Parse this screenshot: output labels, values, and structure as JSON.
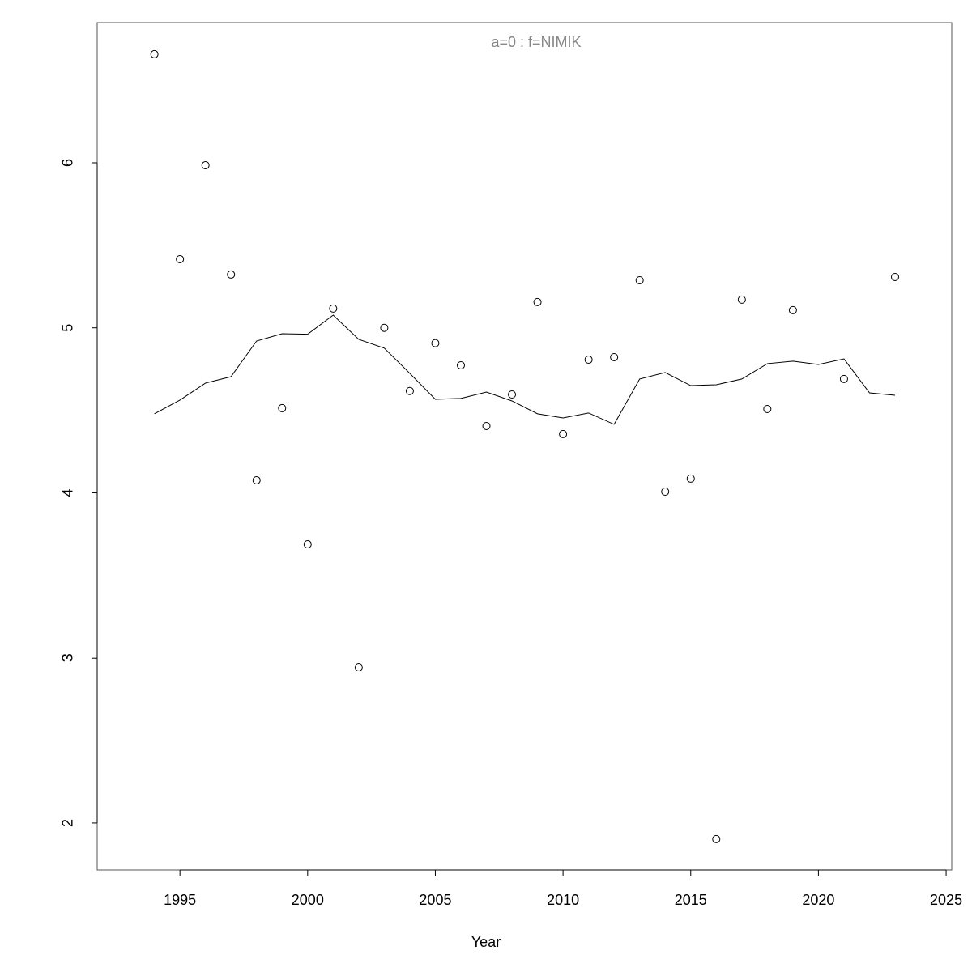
{
  "chart_data": {
    "type": "scatter",
    "title": "a=0  :  f=NIMIK",
    "title_color": "#888888",
    "x_label": "Year",
    "x": [
      1994,
      1995,
      1996,
      1997,
      1998,
      1999,
      2000,
      2001,
      2002,
      2003,
      2004,
      2005,
      2006,
      2007,
      2008,
      2009,
      2010,
      2011,
      2012,
      2013,
      2014,
      2015,
      2016,
      2017,
      2018,
      2019,
      2020,
      2021,
      2022,
      2023
    ],
    "series": [
      {
        "style": "points",
        "color": "#000000",
        "values": [
          6.658,
          5.416,
          5.985,
          5.323,
          4.076,
          4.513,
          3.688,
          5.117,
          2.942,
          5.0,
          4.617,
          4.907,
          4.773,
          4.405,
          4.596,
          5.156,
          4.356,
          4.807,
          4.822,
          5.288,
          4.007,
          4.086,
          1.902,
          5.171,
          4.508,
          5.107,
          null,
          4.69,
          null,
          5.308
        ]
      },
      {
        "style": "line",
        "color": "#000000",
        "values": [
          4.479,
          4.562,
          4.665,
          4.704,
          4.92,
          4.964,
          4.961,
          5.077,
          4.93,
          4.877,
          4.724,
          4.567,
          4.572,
          4.611,
          4.557,
          4.479,
          4.454,
          4.484,
          4.415,
          4.69,
          4.729,
          4.65,
          4.655,
          4.69,
          4.783,
          4.798,
          4.778,
          4.812,
          4.606,
          4.591
        ]
      }
    ],
    "xlim": [
      1991.76,
      2025.22
    ],
    "xticks": [
      1995,
      2000,
      2005,
      2010,
      2015,
      2020,
      2025
    ],
    "ylim": [
      1.715,
      6.849
    ],
    "yticks": [
      2,
      3,
      4,
      5,
      6
    ]
  }
}
